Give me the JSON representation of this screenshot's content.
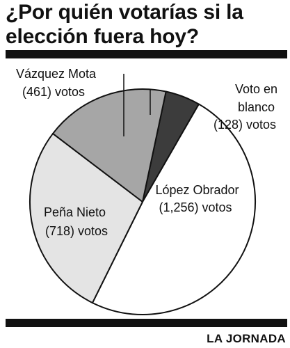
{
  "title": "¿Por quién votarías si la elección fuera hoy?",
  "credit": "LA JORNADA",
  "chart_data": {
    "type": "pie",
    "title": "¿Por quién votarías si la elección fuera hoy?",
    "unit": "votos",
    "slices": [
      {
        "name": "Voto en blanco",
        "value": 128,
        "line1": "Voto en",
        "line2": "blanco",
        "line3": "(128) votos",
        "color": "#3c3c3c"
      },
      {
        "name": "López Obrador",
        "value": 1256,
        "line1": "López Obrador",
        "line2": "(1,256) votos",
        "color": "#ffffff"
      },
      {
        "name": "Peña Nieto",
        "value": 718,
        "line1": "Peña Nieto",
        "line2": "(718) votos",
        "color": "#e4e4e4"
      },
      {
        "name": "Vázquez Mota",
        "value": 461,
        "line1": "Vázquez Mota",
        "line2": "(461) votos",
        "color": "#a6a6a6"
      }
    ]
  }
}
